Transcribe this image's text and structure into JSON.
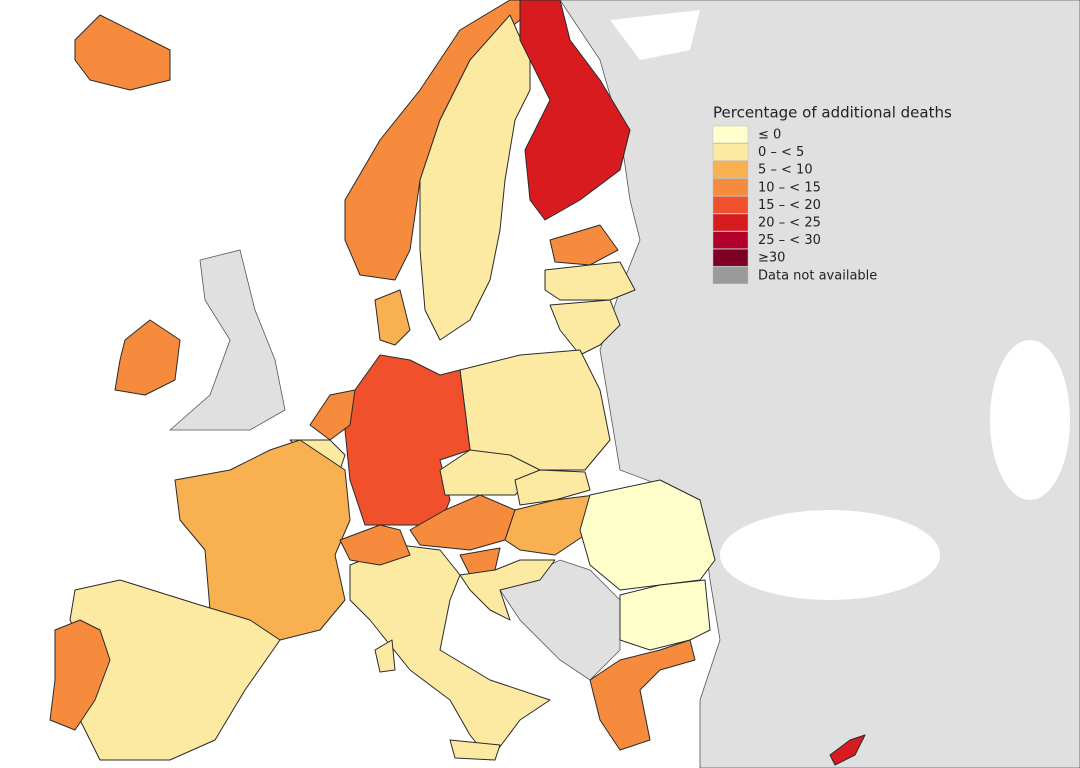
{
  "legend": {
    "title": "Percentage of additional deaths",
    "items": [
      {
        "label": "≤ 0",
        "color": "#ffffcc"
      },
      {
        "label": "0 – < 5",
        "color": "#fce9a2"
      },
      {
        "label": "5 – < 10",
        "color": "#f9b050"
      },
      {
        "label": "10 – < 15",
        "color": "#f68b3d"
      },
      {
        "label": "15 – < 20",
        "color": "#f0502b"
      },
      {
        "label": "20 – < 25",
        "color": "#d81b1e"
      },
      {
        "label": "25 – < 30",
        "color": "#b3002a"
      },
      {
        "label": "≥30",
        "color": "#7d0024"
      },
      {
        "label": "Data not available",
        "color": "#9a9a9a"
      }
    ]
  }
}
